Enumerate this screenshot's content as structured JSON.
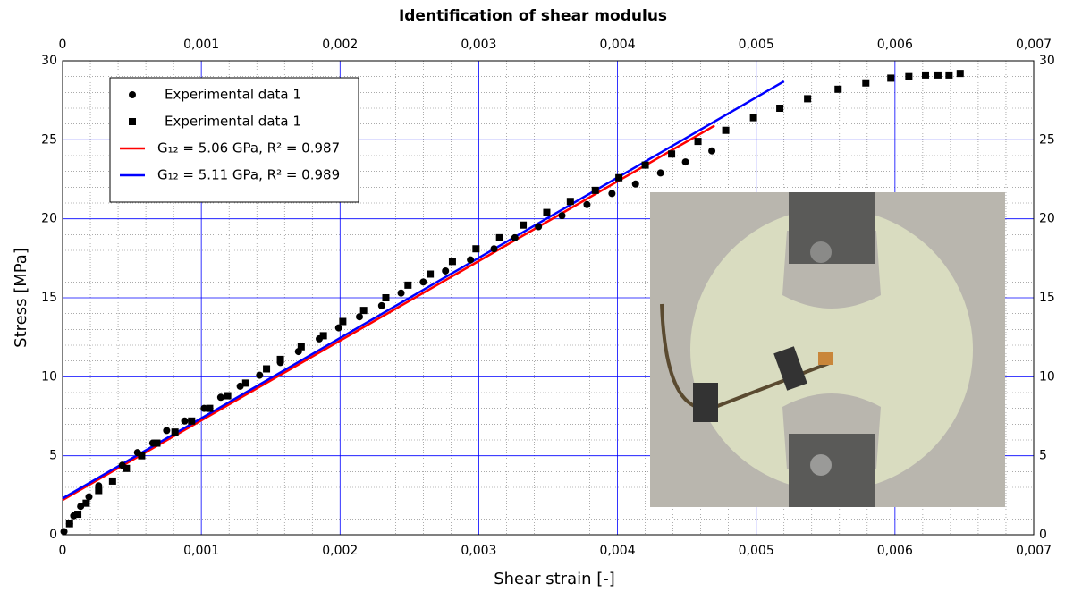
{
  "chart_data": {
    "type": "scatter",
    "title": "Identification of shear modulus",
    "x_label": "Shear strain [-]",
    "y_label": "Stress [MPa]",
    "xlim": [
      0,
      0.007
    ],
    "ylim": [
      0,
      30
    ],
    "xticks": [
      0,
      {
        "value": 0.001,
        "label": "0,001"
      },
      {
        "value": 0.002,
        "label": "0,002"
      },
      {
        "value": 0.003,
        "label": "0,003"
      },
      {
        "value": 0.004,
        "label": "0,004"
      },
      {
        "value": 0.005,
        "label": "0,005"
      },
      {
        "value": 0.006,
        "label": "0,006"
      },
      {
        "value": 0.007,
        "label": "0,007"
      }
    ],
    "yticks": [
      0,
      5,
      10,
      15,
      20,
      25,
      30
    ],
    "grid": true,
    "legend": "upper left",
    "series": [
      {
        "name": "Experimental data 1",
        "color": "#000000",
        "marker": "circle",
        "x": [
          1e-05,
          5e-05,
          8e-05,
          0.00013,
          0.00019,
          0.00026,
          0.00043,
          0.00054,
          0.00065,
          0.00075,
          0.00088,
          0.00102,
          0.00114,
          0.00128,
          0.00142,
          0.00157,
          0.0017,
          0.00185,
          0.00199,
          0.00214,
          0.0023,
          0.00244,
          0.0026,
          0.00276,
          0.00294,
          0.00311,
          0.00326,
          0.00343,
          0.0036,
          0.00378,
          0.00396,
          0.00413,
          0.00431,
          0.00449,
          0.00468
        ],
        "values": [
          0.2,
          0.7,
          1.2,
          1.8,
          2.4,
          3.1,
          4.4,
          5.2,
          5.8,
          6.6,
          7.2,
          8.0,
          8.7,
          9.4,
          10.1,
          10.9,
          11.6,
          12.4,
          13.1,
          13.8,
          14.5,
          15.3,
          16.0,
          16.7,
          17.4,
          18.1,
          18.8,
          19.5,
          20.2,
          20.9,
          21.6,
          22.2,
          22.9,
          23.6,
          24.3
        ]
      },
      {
        "name": "Experimental data 1",
        "color": "#000000",
        "marker": "square",
        "x": [
          5e-05,
          0.00011,
          0.00017,
          0.00026,
          0.00036,
          0.00046,
          0.00057,
          0.00068,
          0.00081,
          0.00093,
          0.00106,
          0.00119,
          0.00132,
          0.00147,
          0.00157,
          0.00172,
          0.00188,
          0.00202,
          0.00217,
          0.00233,
          0.00249,
          0.00265,
          0.00281,
          0.00298,
          0.00315,
          0.00332,
          0.00349,
          0.00366,
          0.00384,
          0.00401,
          0.0042,
          0.00439,
          0.00458,
          0.00478,
          0.00498,
          0.00517,
          0.00537,
          0.00559,
          0.00579,
          0.00597,
          0.0061,
          0.00622,
          0.00631,
          0.00639,
          0.00647
        ],
        "values": [
          0.7,
          1.3,
          2.0,
          2.8,
          3.4,
          4.2,
          5.0,
          5.8,
          6.5,
          7.2,
          8.0,
          8.8,
          9.6,
          10.5,
          11.1,
          11.9,
          12.6,
          13.5,
          14.2,
          15.0,
          15.8,
          16.5,
          17.3,
          18.1,
          18.8,
          19.6,
          20.4,
          21.1,
          21.8,
          22.6,
          23.4,
          24.1,
          24.9,
          25.6,
          26.4,
          27.0,
          27.6,
          28.2,
          28.6,
          28.9,
          29.0,
          29.1,
          29.1,
          29.1,
          29.2
        ]
      },
      {
        "name": "G₁₂ = 5.06 GPa, R² = 0.987",
        "color": "#ff0000",
        "marker": "line",
        "x": [
          0,
          0.0047
        ],
        "values": [
          2.2,
          25.9
        ]
      },
      {
        "name": "G₁₂ = 5.11 GPa, R² = 0.989",
        "color": "#0000ff",
        "marker": "line",
        "x": [
          0,
          0.0052
        ],
        "values": [
          2.3,
          28.7
        ]
      }
    ]
  }
}
